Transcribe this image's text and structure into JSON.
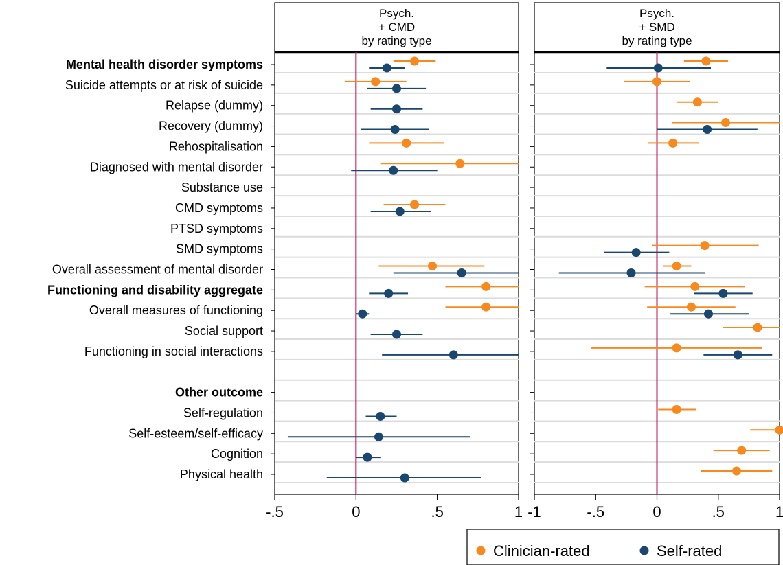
{
  "chart_data": {
    "type": "scatter",
    "subtype": "forest-plot (point estimates with confidence intervals)",
    "rows": [
      {
        "label": "Mental health disorder symptoms",
        "bold": true
      },
      {
        "label": "Suicide attempts or at risk of suicide",
        "bold": false
      },
      {
        "label": "Relapse (dummy)",
        "bold": false
      },
      {
        "label": "Recovery (dummy)",
        "bold": false
      },
      {
        "label": "Rehospitalisation",
        "bold": false
      },
      {
        "label": "Diagnosed with mental disorder",
        "bold": false
      },
      {
        "label": "Substance use",
        "bold": false
      },
      {
        "label": "CMD symptoms",
        "bold": false
      },
      {
        "label": "PTSD symptoms",
        "bold": false
      },
      {
        "label": "SMD symptoms",
        "bold": false
      },
      {
        "label": "Overall assessment of mental disorder",
        "bold": false
      },
      {
        "label": "Functioning and disability aggregate",
        "bold": true
      },
      {
        "label": "Overall measures of functioning",
        "bold": false
      },
      {
        "label": "Social support",
        "bold": false
      },
      {
        "label": "Functioning in social interactions",
        "bold": false
      },
      {
        "label": "",
        "bold": false
      },
      {
        "label": "Other outcome",
        "bold": true
      },
      {
        "label": "Self-regulation",
        "bold": false
      },
      {
        "label": "Self-esteem/self-efficacy",
        "bold": false
      },
      {
        "label": "Cognition",
        "bold": false
      },
      {
        "label": "Physical health",
        "bold": false
      }
    ],
    "legend": {
      "position": "bottom-right",
      "entries": [
        {
          "name": "Clinician-rated",
          "color": "#F7891E"
        },
        {
          "name": "Self-rated",
          "color": "#1A476F"
        }
      ]
    },
    "panels": [
      {
        "title": [
          "Psych.",
          "+ CMD",
          "by rating type"
        ],
        "xlim": [
          -0.5,
          1
        ],
        "ticks": [
          -0.5,
          0,
          0.5,
          1
        ],
        "tick_labels": [
          "-.5",
          "0",
          ".5",
          "1"
        ],
        "reference_line": 0,
        "series": [
          {
            "name": "Clinician-rated",
            "points": [
              {
                "row": 0,
                "est": 0.36,
                "lo": 0.23,
                "hi": 0.49
              },
              {
                "row": 1,
                "est": 0.12,
                "lo": -0.07,
                "hi": 0.31
              },
              {
                "row": 4,
                "est": 0.31,
                "lo": 0.08,
                "hi": 0.54
              },
              {
                "row": 5,
                "est": 0.64,
                "lo": 0.15,
                "hi": 1.0
              },
              {
                "row": 7,
                "est": 0.36,
                "lo": 0.17,
                "hi": 0.55
              },
              {
                "row": 10,
                "est": 0.47,
                "lo": 0.14,
                "hi": 0.79
              },
              {
                "row": 11,
                "est": 0.8,
                "lo": 0.55,
                "hi": 1.0
              },
              {
                "row": 12,
                "est": 0.8,
                "lo": 0.55,
                "hi": 1.0
              }
            ]
          },
          {
            "name": "Self-rated",
            "points": [
              {
                "row": 0,
                "est": 0.19,
                "lo": 0.08,
                "hi": 0.3
              },
              {
                "row": 1,
                "est": 0.25,
                "lo": 0.07,
                "hi": 0.43
              },
              {
                "row": 2,
                "est": 0.25,
                "lo": 0.09,
                "hi": 0.41
              },
              {
                "row": 3,
                "est": 0.24,
                "lo": 0.03,
                "hi": 0.45
              },
              {
                "row": 5,
                "est": 0.23,
                "lo": -0.03,
                "hi": 0.5
              },
              {
                "row": 7,
                "est": 0.27,
                "lo": 0.09,
                "hi": 0.46
              },
              {
                "row": 10,
                "est": 0.65,
                "lo": 0.23,
                "hi": 1.0
              },
              {
                "row": 11,
                "est": 0.2,
                "lo": 0.08,
                "hi": 0.32
              },
              {
                "row": 12,
                "est": 0.04,
                "lo": 0.0,
                "hi": 0.08
              },
              {
                "row": 13,
                "est": 0.25,
                "lo": 0.09,
                "hi": 0.41
              },
              {
                "row": 14,
                "est": 0.6,
                "lo": 0.16,
                "hi": 1.0
              },
              {
                "row": 17,
                "est": 0.15,
                "lo": 0.06,
                "hi": 0.25
              },
              {
                "row": 18,
                "est": 0.14,
                "lo": -0.42,
                "hi": 0.7
              },
              {
                "row": 19,
                "est": 0.07,
                "lo": 0.0,
                "hi": 0.15
              },
              {
                "row": 20,
                "est": 0.3,
                "lo": -0.18,
                "hi": 0.77
              }
            ]
          }
        ]
      },
      {
        "title": [
          "Psych.",
          "+ SMD",
          "by rating type"
        ],
        "xlim": [
          -1,
          1
        ],
        "ticks": [
          -1,
          -0.5,
          0,
          0.5,
          1
        ],
        "tick_labels": [
          "-1",
          "-.5",
          "0",
          ".5",
          "1"
        ],
        "reference_line": 0,
        "series": [
          {
            "name": "Clinician-rated",
            "points": [
              {
                "row": 0,
                "est": 0.4,
                "lo": 0.22,
                "hi": 0.58
              },
              {
                "row": 1,
                "est": 0.0,
                "lo": -0.27,
                "hi": 0.27
              },
              {
                "row": 2,
                "est": 0.33,
                "lo": 0.16,
                "hi": 0.5
              },
              {
                "row": 3,
                "est": 0.56,
                "lo": 0.12,
                "hi": 1.0
              },
              {
                "row": 4,
                "est": 0.13,
                "lo": -0.07,
                "hi": 0.34
              },
              {
                "row": 9,
                "est": 0.39,
                "lo": -0.04,
                "hi": 0.83
              },
              {
                "row": 10,
                "est": 0.16,
                "lo": 0.05,
                "hi": 0.28
              },
              {
                "row": 11,
                "est": 0.31,
                "lo": -0.1,
                "hi": 0.72
              },
              {
                "row": 12,
                "est": 0.28,
                "lo": -0.08,
                "hi": 0.64
              },
              {
                "row": 13,
                "est": 0.82,
                "lo": 0.54,
                "hi": 1.0
              },
              {
                "row": 14,
                "est": 0.16,
                "lo": -0.54,
                "hi": 0.86
              },
              {
                "row": 17,
                "est": 0.16,
                "lo": 0.01,
                "hi": 0.32
              },
              {
                "row": 18,
                "est": 1.0,
                "lo": 0.76,
                "hi": 1.0
              },
              {
                "row": 19,
                "est": 0.69,
                "lo": 0.46,
                "hi": 0.92
              },
              {
                "row": 20,
                "est": 0.65,
                "lo": 0.36,
                "hi": 0.94
              }
            ]
          },
          {
            "name": "Self-rated",
            "points": [
              {
                "row": 0,
                "est": 0.01,
                "lo": -0.41,
                "hi": 0.44
              },
              {
                "row": 3,
                "est": 0.41,
                "lo": 0.0,
                "hi": 0.82
              },
              {
                "row": 9,
                "est": -0.17,
                "lo": -0.43,
                "hi": 0.1
              },
              {
                "row": 10,
                "est": -0.21,
                "lo": -0.8,
                "hi": 0.39
              },
              {
                "row": 11,
                "est": 0.54,
                "lo": 0.3,
                "hi": 0.78
              },
              {
                "row": 12,
                "est": 0.42,
                "lo": 0.11,
                "hi": 0.75
              },
              {
                "row": 14,
                "est": 0.66,
                "lo": 0.38,
                "hi": 0.94
              }
            ]
          }
        ]
      }
    ]
  }
}
